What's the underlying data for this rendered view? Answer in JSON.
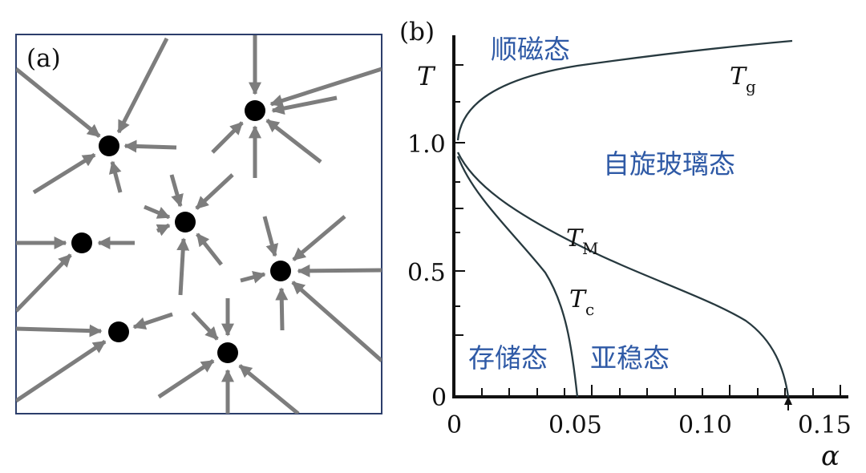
{
  "panel_a": {
    "label": "(a)",
    "border_color": "#2c3e6b",
    "arrow_color": "#7d7d7d",
    "node_color": "#000000"
  },
  "panel_b": {
    "label": "(b)",
    "y_axis_title": "T",
    "x_axis_title": "α",
    "y_ticks": [
      "1.0",
      "0.5",
      "0"
    ],
    "x_ticks": [
      "0",
      "0.05",
      "0.10",
      "0.15"
    ],
    "regions": {
      "paramagnetic": "顺磁态",
      "spin_glass": "自旋玻璃态",
      "memory": "存储态",
      "metastable": "亚稳态"
    },
    "curve_labels": {
      "tg_main": "T",
      "tg_sub": "g",
      "tm_main": "T",
      "tm_sub": "M",
      "tc_main": "T",
      "tc_sub": "c"
    },
    "region_color": "#2f5aa6",
    "curve_color": "#27393f"
  },
  "chart_data": {
    "type": "line",
    "xlabel": "α",
    "ylabel": "T",
    "xlim": [
      0,
      0.16
    ],
    "ylim": [
      0,
      1.4
    ],
    "series": [
      {
        "name": "Tg",
        "x": [
          0,
          0.005,
          0.01,
          0.02,
          0.04,
          0.06,
          0.08,
          0.1,
          0.12,
          0.14
        ],
        "y": [
          1.0,
          1.09,
          1.13,
          1.18,
          1.24,
          1.28,
          1.31,
          1.34,
          1.37,
          1.39
        ]
      },
      {
        "name": "TM",
        "x": [
          0,
          0.005,
          0.01,
          0.02,
          0.03,
          0.05,
          0.07,
          0.09,
          0.11,
          0.12,
          0.13,
          0.138
        ],
        "y": [
          0.93,
          0.85,
          0.79,
          0.71,
          0.64,
          0.53,
          0.44,
          0.35,
          0.25,
          0.18,
          0.09,
          0.0
        ]
      },
      {
        "name": "Tc",
        "x": [
          0,
          0.005,
          0.01,
          0.02,
          0.03,
          0.04,
          0.045,
          0.049,
          0.051
        ],
        "y": [
          0.93,
          0.82,
          0.74,
          0.6,
          0.47,
          0.32,
          0.21,
          0.1,
          0.0
        ]
      }
    ],
    "annotations": [
      "顺磁态",
      "自旋玻璃态",
      "存储态",
      "亚稳态"
    ]
  }
}
